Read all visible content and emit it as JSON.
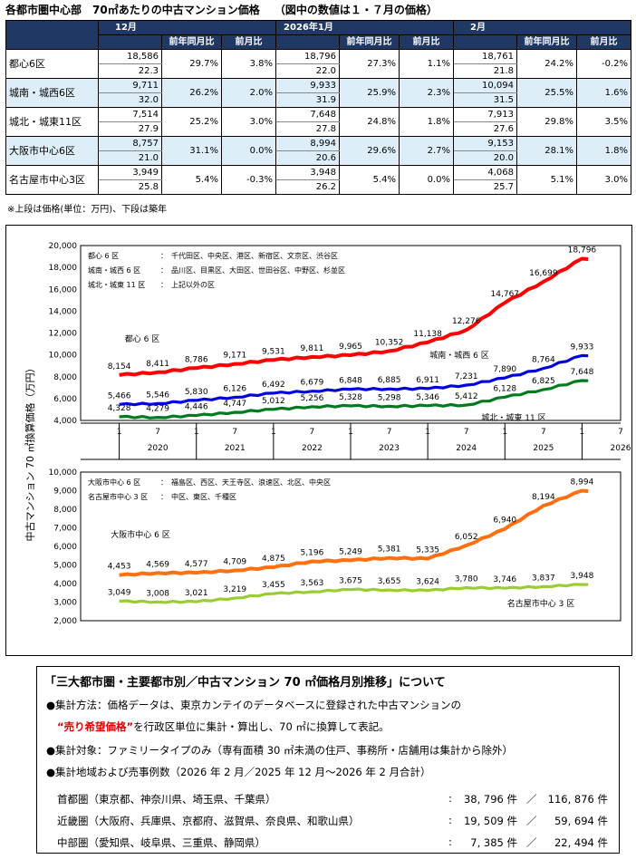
{
  "title": "各都市圏中心部　70㎡あたりの中古マンション価格　 （図中の数値は１・７月の価格）",
  "table": {
    "months": [
      "12月",
      "2026年1月",
      "2月"
    ],
    "subheaders": [
      "前年同月比",
      "前月比"
    ],
    "rows": [
      {
        "name": "都心6区",
        "cells": [
          {
            "price": "18,586",
            "age": "22.3",
            "yoy": "29.7%",
            "mom": "3.8%"
          },
          {
            "price": "18,796",
            "age": "22.0",
            "yoy": "27.3%",
            "mom": "1.1%"
          },
          {
            "price": "18,761",
            "age": "21.8",
            "yoy": "24.2%",
            "mom": "-0.2%"
          }
        ]
      },
      {
        "name": "城南・城西6区",
        "cells": [
          {
            "price": "9,711",
            "age": "32.0",
            "yoy": "26.2%",
            "mom": "2.0%"
          },
          {
            "price": "9,933",
            "age": "31.9",
            "yoy": "25.9%",
            "mom": "2.3%"
          },
          {
            "price": "10,094",
            "age": "31.5",
            "yoy": "25.5%",
            "mom": "1.6%"
          }
        ]
      },
      {
        "name": "城北・城東11区",
        "cells": [
          {
            "price": "7,514",
            "age": "27.9",
            "yoy": "25.2%",
            "mom": "3.0%"
          },
          {
            "price": "7,648",
            "age": "27.8",
            "yoy": "24.8%",
            "mom": "1.8%"
          },
          {
            "price": "7,913",
            "age": "27.6",
            "yoy": "29.8%",
            "mom": "3.5%"
          }
        ]
      },
      {
        "name": "大阪市中心6区",
        "cells": [
          {
            "price": "8,757",
            "age": "21.0",
            "yoy": "31.1%",
            "mom": "0.0%"
          },
          {
            "price": "8,994",
            "age": "20.6",
            "yoy": "29.6%",
            "mom": "2.7%"
          },
          {
            "price": "9,153",
            "age": "20.0",
            "yoy": "28.1%",
            "mom": "1.8%"
          }
        ]
      },
      {
        "name": "名古屋市中心3区",
        "cells": [
          {
            "price": "3,949",
            "age": "25.8",
            "yoy": "5.4%",
            "mom": "-0.3%"
          },
          {
            "price": "3,948",
            "age": "26.2",
            "yoy": "5.4%",
            "mom": "0.0%"
          },
          {
            "price": "4,068",
            "age": "25.7",
            "yoy": "5.1%",
            "mom": "3.0%"
          }
        ]
      }
    ],
    "note": "※上段は価格(単位：万円)、下段は築年"
  },
  "chart_data": [
    {
      "type": "line",
      "ylabel": "中古マンション 70 ㎡換算価格（万円）",
      "ylim": [
        4000,
        20000
      ],
      "yticks": [
        "20,000",
        "18,000",
        "16,000",
        "14,000",
        "12,000",
        "10,000",
        "8,000",
        "6,000",
        "4,000"
      ],
      "xlim": [
        2019.5,
        2026.5
      ],
      "x_ticks": [
        "1",
        "7",
        "1",
        "7",
        "1",
        "7",
        "1",
        "7",
        "1",
        "7",
        "1",
        "7",
        "1",
        "7"
      ],
      "x_years": [
        "2020",
        "2021",
        "2022",
        "2023",
        "2024",
        "2025",
        "2026"
      ],
      "legend": [
        {
          "name": "都心 6 区",
          "desc": "：　千代田区、中央区、港区、新宿区、文京区、渋谷区"
        },
        {
          "name": "城南・城西 6 区",
          "desc": "：　品川区、目黒区、大田区、世田谷区、中野区、杉並区"
        },
        {
          "name": "城北・城東 11 区",
          "desc": "：　上記以外の区"
        }
      ],
      "series": [
        {
          "name": "都心 6 区",
          "color": "#ff0000",
          "x": [
            2020.0,
            2020.5,
            2021.0,
            2021.5,
            2022.0,
            2022.5,
            2023.0,
            2023.5,
            2024.0,
            2024.5,
            2025.0,
            2025.5,
            2026.0
          ],
          "values": [
            8154,
            8411,
            8786,
            9171,
            9531,
            9811,
            9965,
            10352,
            11138,
            12276,
            14767,
            16699,
            18796
          ],
          "labels": [
            "8,154",
            "8,411",
            "8,786",
            "9,171",
            "9,531",
            "9,811",
            "9,965",
            "10,352",
            "11,138",
            "12,276",
            "14,767",
            "16,699",
            "18,796"
          ],
          "label": "都心 6 区"
        },
        {
          "name": "城南・城西 6 区",
          "color": "#0000e0",
          "x": [
            2020.0,
            2020.5,
            2021.0,
            2021.5,
            2022.0,
            2022.5,
            2023.0,
            2023.5,
            2024.0,
            2024.5,
            2025.0,
            2025.5,
            2026.0
          ],
          "values": [
            5466,
            5546,
            5830,
            6126,
            6492,
            6679,
            6848,
            6885,
            6911,
            7231,
            7890,
            8764,
            9933
          ],
          "labels": [
            "5,466",
            "5,546",
            "5,830",
            "6,126",
            "6,492",
            "6,679",
            "6,848",
            "6,885",
            "6,911",
            "7,231",
            "7,890",
            "8,764",
            "9,933"
          ],
          "label": "城南・城西 6 区"
        },
        {
          "name": "城北・城東 11 区",
          "color": "#007a1e",
          "x": [
            2020.0,
            2020.5,
            2021.0,
            2021.5,
            2022.0,
            2022.5,
            2023.0,
            2023.5,
            2024.0,
            2024.5,
            2025.0,
            2025.5,
            2026.0
          ],
          "values": [
            4328,
            4279,
            4446,
            4747,
            5012,
            5256,
            5328,
            5298,
            5346,
            5412,
            6128,
            6825,
            7648
          ],
          "labels": [
            "4,328",
            "4,279",
            "4,446",
            "4,747",
            "5,012",
            "5,256",
            "5,328",
            "5,298",
            "5,346",
            "5,412",
            "6,128",
            "6,825",
            "7,648"
          ],
          "label": "城北・城東 11 区"
        }
      ]
    },
    {
      "type": "line",
      "ylim": [
        2000,
        10000
      ],
      "yticks": [
        "10,000",
        "9,000",
        "8,000",
        "7,000",
        "6,000",
        "5,000",
        "4,000",
        "3,000",
        "2,000"
      ],
      "xlim": [
        2019.5,
        2026.5
      ],
      "legend": [
        {
          "name": "大阪市中心 6 区",
          "desc": "：　福島区、西区、天王寺区、浪速区、北区、中央区"
        },
        {
          "name": "名古屋市中心 3 区",
          "desc": "：　中区、東区、千種区"
        }
      ],
      "series": [
        {
          "name": "大阪市中心 6 区",
          "color": "#ff7010",
          "x": [
            2020.0,
            2020.5,
            2021.0,
            2021.5,
            2022.0,
            2022.5,
            2023.0,
            2023.5,
            2024.0,
            2024.5,
            2025.0,
            2025.5,
            2026.0
          ],
          "values": [
            4453,
            4569,
            4577,
            4709,
            4875,
            5196,
            5249,
            5381,
            5335,
            6052,
            6940,
            8194,
            8994
          ],
          "labels": [
            "4,453",
            "4,569",
            "4,577",
            "4,709",
            "4,875",
            "5,196",
            "5,249",
            "5,381",
            "5,335",
            "6,052",
            "6,940",
            "8,194",
            "8,994"
          ],
          "label": "大阪市中心 6 区"
        },
        {
          "name": "名古屋市中心 3 区",
          "color": "#9acd32",
          "x": [
            2020.0,
            2020.5,
            2021.0,
            2021.5,
            2022.0,
            2022.5,
            2023.0,
            2023.5,
            2024.0,
            2024.5,
            2025.0,
            2025.5,
            2026.0
          ],
          "values": [
            3049,
            3008,
            3021,
            3219,
            3455,
            3563,
            3675,
            3655,
            3624,
            3780,
            3746,
            3837,
            3948
          ],
          "labels": [
            "3,049",
            "3,008",
            "3,021",
            "3,219",
            "3,455",
            "3,563",
            "3,675",
            "3,655",
            "3,624",
            "3,780",
            "3,746",
            "3,837",
            "3,948"
          ],
          "label": "名古屋市中心 3 区"
        }
      ]
    }
  ],
  "info": {
    "title": "「三大都市圏・主要都市別／中古マンション 70 ㎡価格月別推移」について",
    "method_pre": "●集計方法：価格データは、東京カンテイのデータベースに登録された中古マンションの",
    "method_red": "“売り希望価格”",
    "method_post": "を行政区単位に集計・算出し、70 ㎡に換算して表記。",
    "target": "●集計対象：ファミリータイプのみ（専有面積 30 ㎡未満の住戸、事務所・店舗用は集計から除外）",
    "area": "●集計地域および売事例数（2026 年 2 月／2025 年 12 月～2026 年 2 月合計）",
    "regions": [
      {
        "name": "首都圏（東京都、神奈川県、埼玉県、千葉県）",
        "sep": ":",
        "a": "38, 796 件",
        "slash": "／",
        "b": "116, 876 件"
      },
      {
        "name": "近畿圏（大阪府、兵庫県、京都府、滋賀県、奈良県、和歌山県）",
        "sep": ":",
        "a": "19, 509 件",
        "slash": "／",
        "b": "59, 694 件"
      },
      {
        "name": "中部圏（愛知県、岐阜県、三重県、静岡県）",
        "sep": ":",
        "a": "7, 385 件",
        "slash": "／",
        "b": "22, 494 件"
      }
    ]
  }
}
